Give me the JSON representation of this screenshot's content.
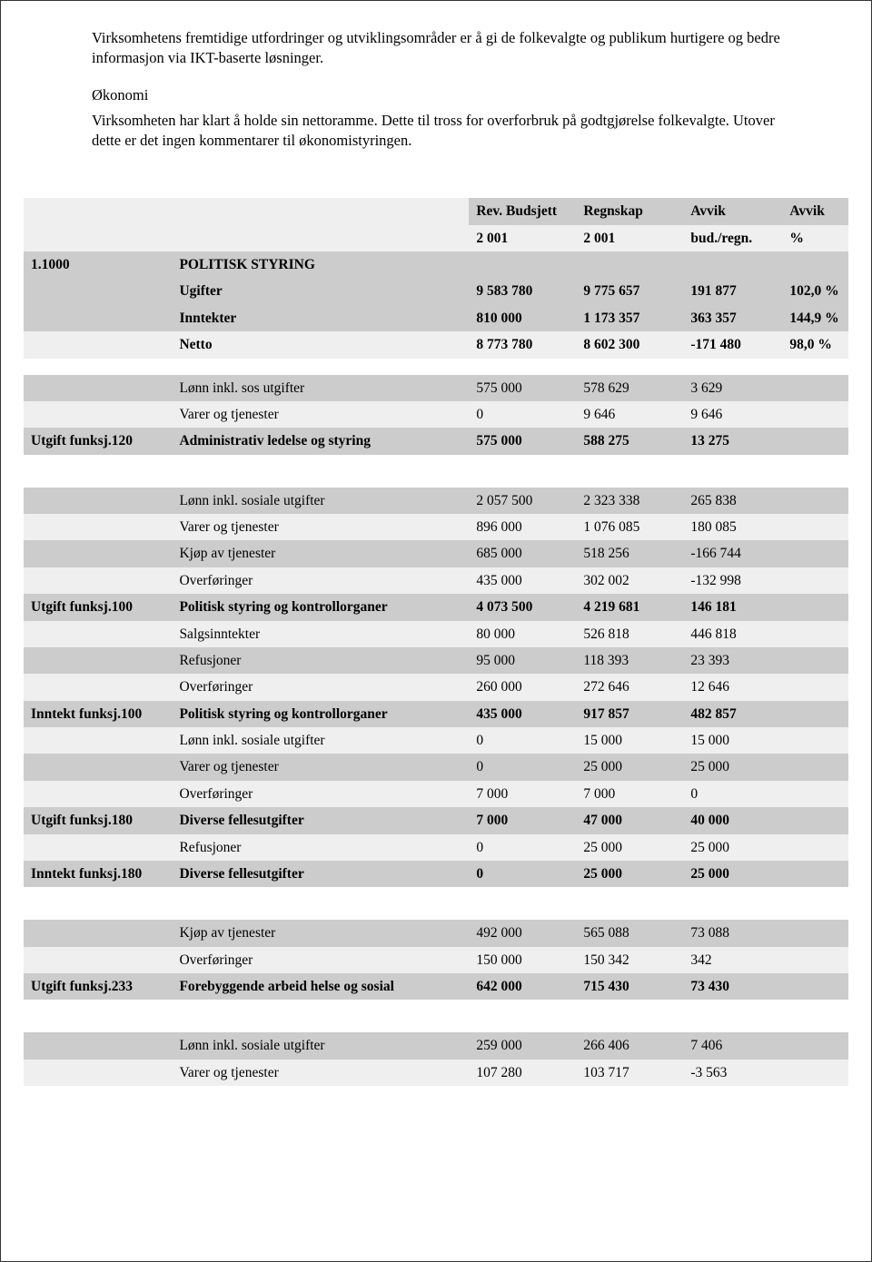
{
  "text": {
    "p1": "Virksomhetens fremtidige utfordringer og utviklingsområder er å gi de folkevalgte og publikum hurtigere og bedre informasjon via IKT-baserte løsninger.",
    "okonomi_title": "Økonomi",
    "p2": "Virksomheten har klart å holde sin nettoramme. Dette til tross for overforbruk på godtgjørelse folkevalgte. Utover dette er det ingen kommentarer til økonomistyringen."
  },
  "table": {
    "header": {
      "rev_budsjett": "Rev. Budsjett",
      "regnskap": "Regnskap",
      "avvik": "Avvik",
      "avvik2": "Avvik",
      "y1": "2 001",
      "y2": "2 001",
      "budregn": "bud./regn.",
      "pct": "%"
    },
    "rows": [
      {
        "style": "hdr",
        "a": "1.1000",
        "b": "POLITISK STYRING",
        "c": "",
        "d": "",
        "e": "",
        "f": ""
      },
      {
        "style": "shade bold",
        "a": "",
        "b": "Ugifter",
        "c": "9 583 780",
        "d": "9 775 657",
        "e": "191 877",
        "f": "102,0 %"
      },
      {
        "style": "shade bold",
        "a": "",
        "b": "Inntekter",
        "c": "810 000",
        "d": "1 173 357",
        "e": "363 357",
        "f": "144,9 %"
      },
      {
        "style": "light bold",
        "a": "",
        "b": "Netto",
        "c": "8 773 780",
        "d": "8 602 300",
        "e": "-171 480",
        "f": "98,0 %"
      },
      {
        "style": "blank",
        "a": "",
        "b": "",
        "c": "",
        "d": "",
        "e": "",
        "f": ""
      },
      {
        "style": "shade",
        "a": "",
        "b": "Lønn inkl. sos utgifter",
        "c": "575 000",
        "d": "578 629",
        "e": "3 629",
        "f": ""
      },
      {
        "style": "light",
        "a": "",
        "b": "Varer og tjenester",
        "c": "0",
        "d": "9 646",
        "e": "9 646",
        "f": ""
      },
      {
        "style": "shade bold",
        "a": "Utgift funksj.120",
        "b": "Administrativ ledelse og styring",
        "c": "575 000",
        "d": "588 275",
        "e": "13 275",
        "f": ""
      },
      {
        "style": "blank",
        "a": "",
        "b": "",
        "c": "",
        "d": "",
        "e": "",
        "f": ""
      },
      {
        "style": "blank",
        "a": "",
        "b": "",
        "c": "",
        "d": "",
        "e": "",
        "f": ""
      },
      {
        "style": "shade",
        "a": "",
        "b": "Lønn inkl. sosiale utgifter",
        "c": "2 057 500",
        "d": "2 323 338",
        "e": "265 838",
        "f": ""
      },
      {
        "style": "light",
        "a": "",
        "b": "Varer og tjenester",
        "c": "896 000",
        "d": "1 076 085",
        "e": "180 085",
        "f": ""
      },
      {
        "style": "shade",
        "a": "",
        "b": "Kjøp av tjenester",
        "c": "685 000",
        "d": "518 256",
        "e": "-166 744",
        "f": ""
      },
      {
        "style": "light",
        "a": "",
        "b": "Overføringer",
        "c": "435 000",
        "d": "302 002",
        "e": "-132 998",
        "f": ""
      },
      {
        "style": "shade bold",
        "a": "Utgift funksj.100",
        "b": "Politisk styring og kontrollorganer",
        "c": "4 073 500",
        "d": "4 219 681",
        "e": "146 181",
        "f": ""
      },
      {
        "style": "light",
        "a": "",
        "b": "Salgsinntekter",
        "c": "80 000",
        "d": "526 818",
        "e": "446 818",
        "f": ""
      },
      {
        "style": "shade",
        "a": "",
        "b": "Refusjoner",
        "c": "95 000",
        "d": "118 393",
        "e": "23 393",
        "f": ""
      },
      {
        "style": "light",
        "a": "",
        "b": "Overføringer",
        "c": "260 000",
        "d": "272 646",
        "e": "12 646",
        "f": ""
      },
      {
        "style": "shade bold",
        "a": "Inntekt funksj.100",
        "b": "Politisk styring og kontrollorganer",
        "c": "435 000",
        "d": "917 857",
        "e": "482 857",
        "f": ""
      },
      {
        "style": "light",
        "a": "",
        "b": "Lønn inkl. sosiale utgifter",
        "c": "0",
        "d": "15 000",
        "e": "15 000",
        "f": ""
      },
      {
        "style": "shade",
        "a": "",
        "b": "Varer og tjenester",
        "c": "0",
        "d": "25 000",
        "e": "25 000",
        "f": ""
      },
      {
        "style": "light",
        "a": "",
        "b": "Overføringer",
        "c": "7 000",
        "d": "7 000",
        "e": "0",
        "f": ""
      },
      {
        "style": "shade bold",
        "a": "Utgift funksj.180",
        "b": "Diverse fellesutgifter",
        "c": "7 000",
        "d": "47 000",
        "e": "40 000",
        "f": ""
      },
      {
        "style": "light",
        "a": "",
        "b": "Refusjoner",
        "c": "0",
        "d": "25 000",
        "e": "25 000",
        "f": ""
      },
      {
        "style": "shade bold",
        "a": "Inntekt funksj.180",
        "b": "Diverse fellesutgifter",
        "c": "0",
        "d": "25 000",
        "e": "25 000",
        "f": ""
      },
      {
        "style": "blank",
        "a": "",
        "b": "",
        "c": "",
        "d": "",
        "e": "",
        "f": ""
      },
      {
        "style": "blank",
        "a": "",
        "b": "",
        "c": "",
        "d": "",
        "e": "",
        "f": ""
      },
      {
        "style": "shade",
        "a": "",
        "b": "Kjøp av tjenester",
        "c": "492 000",
        "d": "565 088",
        "e": "73 088",
        "f": ""
      },
      {
        "style": "light",
        "a": "",
        "b": "Overføringer",
        "c": "150 000",
        "d": "150 342",
        "e": "342",
        "f": ""
      },
      {
        "style": "shade bold",
        "a": "Utgift funksj.233",
        "b": "Forebyggende arbeid helse og sosial",
        "c": "642 000",
        "d": "715 430",
        "e": "73 430",
        "f": ""
      },
      {
        "style": "blank",
        "a": "",
        "b": "",
        "c": "",
        "d": "",
        "e": "",
        "f": ""
      },
      {
        "style": "blank",
        "a": "",
        "b": "",
        "c": "",
        "d": "",
        "e": "",
        "f": ""
      },
      {
        "style": "shade",
        "a": "",
        "b": "Lønn inkl. sosiale utgifter",
        "c": "259 000",
        "d": "266 406",
        "e": "7 406",
        "f": ""
      },
      {
        "style": "light",
        "a": "",
        "b": "Varer og tjenester",
        "c": "107 280",
        "d": "103 717",
        "e": "-3 563",
        "f": ""
      }
    ]
  }
}
